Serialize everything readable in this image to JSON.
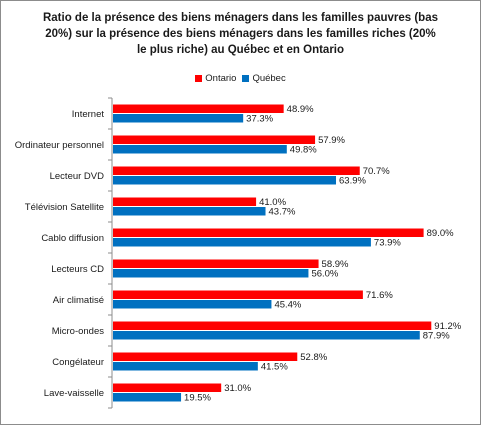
{
  "chart_data": {
    "type": "bar",
    "orientation": "horizontal",
    "title": "Ratio de la présence des biens ménagers dans les familles pauvres (bas 20%) sur la présence des biens ménagers dans les familles riches (20% le plus riche) au Québec et en Ontario",
    "title_lines": [
      "Ratio de la présence des biens ménagers dans les familles pauvres (bas",
      "20%) sur la présence des biens ménagers dans les familles riches (20%",
      "le plus riche) au Québec et en Ontario"
    ],
    "legend_position": "top",
    "categories": [
      "Internet",
      "Ordinateur personnel",
      "Lecteur DVD",
      "Télévision Satellite",
      "Cablo diffusion",
      "Lecteurs CD",
      "Air climatisé",
      "Micro-ondes",
      "Congélateur",
      "Lave-vaisselle"
    ],
    "series": [
      {
        "name": "Ontario",
        "color": "#ff0000",
        "values": [
          48.9,
          57.9,
          70.7,
          41.0,
          89.0,
          58.9,
          71.6,
          91.2,
          52.8,
          31.0
        ],
        "labels": [
          "48.9%",
          "57.9%",
          "70.7%",
          "41.0%",
          "89.0%",
          "58.9%",
          "71.6%",
          "91.2%",
          "52.8%",
          "31.0%"
        ]
      },
      {
        "name": "Québec",
        "color": "#0070c0",
        "values": [
          37.3,
          49.8,
          63.9,
          43.7,
          73.9,
          56.0,
          45.4,
          87.9,
          41.5,
          19.5
        ],
        "labels": [
          "37.3%",
          "49.8%",
          "63.9%",
          "43.7%",
          "73.9%",
          "56.0%",
          "45.4%",
          "87.9%",
          "41.5%",
          "19.5%"
        ]
      }
    ],
    "xlim": [
      0,
      100
    ],
    "grid": false
  }
}
